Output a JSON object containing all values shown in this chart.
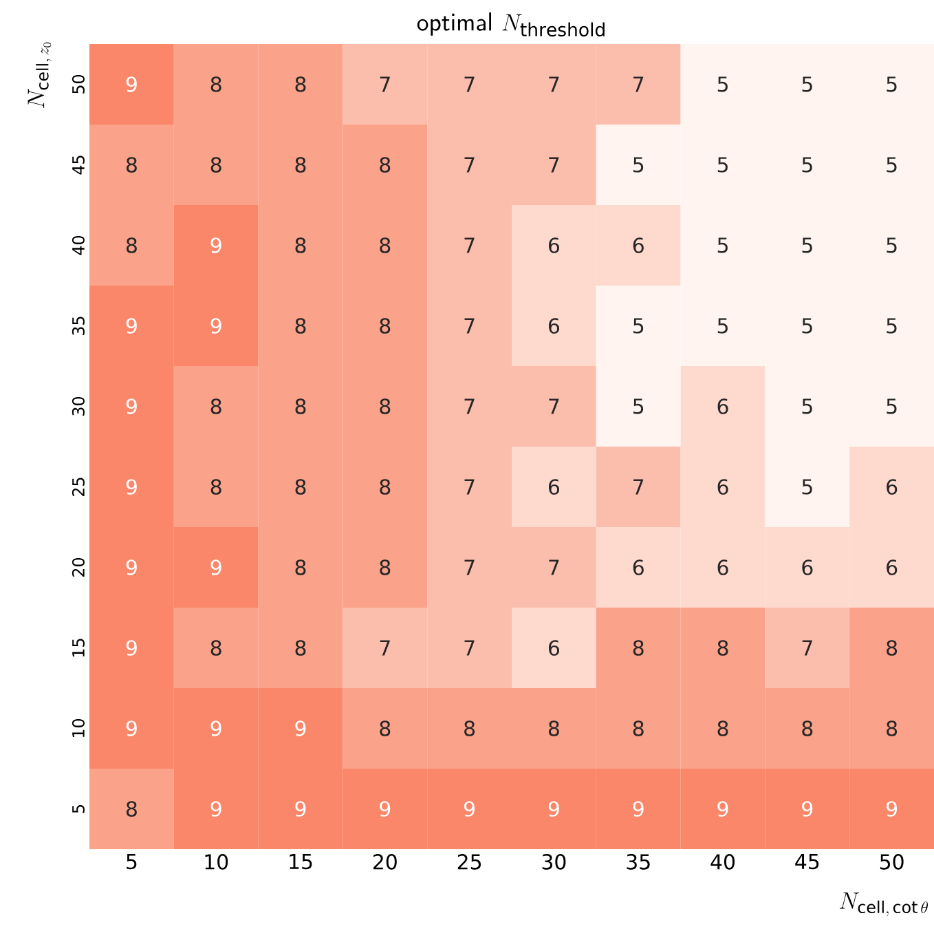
{
  "chart_data": {
    "type": "heatmap",
    "title": "\\mathsf{optimal}\\ N_{\\mathrm{threshold}}",
    "xlabel": "N_{\\mathrm{cell},\\,\\cot\\theta}",
    "ylabel": "N_{\\mathrm{cell},\\,z_0}",
    "categories": [
      "5",
      "10",
      "15",
      "20",
      "25",
      "30",
      "35",
      "40",
      "45",
      "50"
    ],
    "y_categories": [
      "50",
      "45",
      "40",
      "35",
      "30",
      "25",
      "20",
      "15",
      "10",
      "5"
    ],
    "cells": [
      [
        9,
        8,
        8,
        7,
        7,
        7,
        7,
        5,
        5,
        5
      ],
      [
        8,
        8,
        8,
        8,
        7,
        7,
        5,
        5,
        5,
        5
      ],
      [
        8,
        9,
        8,
        8,
        7,
        6,
        6,
        5,
        5,
        5
      ],
      [
        9,
        9,
        8,
        8,
        7,
        6,
        5,
        5,
        5,
        5
      ],
      [
        9,
        8,
        8,
        8,
        7,
        7,
        5,
        6,
        5,
        5
      ],
      [
        9,
        8,
        8,
        8,
        7,
        6,
        7,
        6,
        5,
        6
      ],
      [
        9,
        9,
        8,
        8,
        7,
        7,
        6,
        6,
        6,
        6
      ],
      [
        9,
        8,
        8,
        7,
        7,
        6,
        8,
        8,
        7,
        8
      ],
      [
        9,
        9,
        9,
        8,
        8,
        8,
        8,
        8,
        8,
        8
      ],
      [
        8,
        9,
        9,
        9,
        9,
        9,
        9,
        9,
        9,
        9
      ]
    ],
    "data_labels": true
  }
}
